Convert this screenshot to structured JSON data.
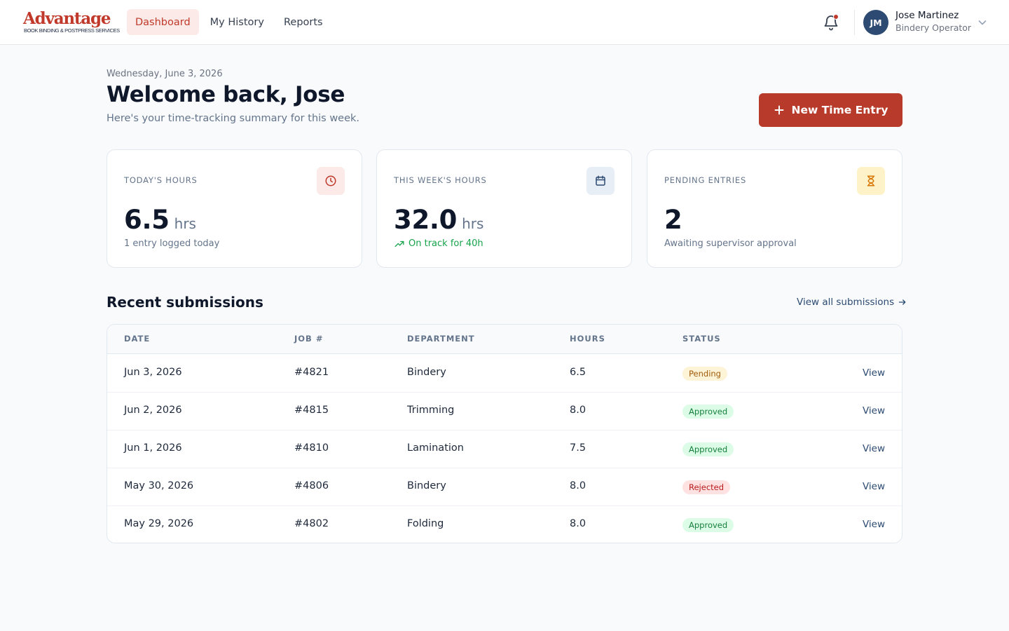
{
  "brand": {
    "name": "Advantage",
    "tagline": "BOOK BINDING & POSTPRESS SERVICES",
    "accent": "#c0392b"
  },
  "nav": [
    {
      "label": "Dashboard",
      "active": true
    },
    {
      "label": "My History",
      "active": false
    },
    {
      "label": "Reports",
      "active": false
    }
  ],
  "user": {
    "initials": "JM",
    "name": "Jose Martinez",
    "role": "Bindery Operator"
  },
  "header": {
    "date": "Wednesday, June 3, 2026",
    "title": "Welcome back, Jose",
    "subtitle": "Here's your time-tracking summary for this week.",
    "new_entry_label": "New Time Entry"
  },
  "stats": [
    {
      "label": "TODAY'S HOURS",
      "value": "6.5",
      "unit": "hrs",
      "note": "1 entry logged today",
      "icon": "clock-icon"
    },
    {
      "label": "THIS WEEK'S HOURS",
      "value": "32.0",
      "unit": "hrs",
      "note": "On track for 40h",
      "icon": "calendar-icon"
    },
    {
      "label": "PENDING ENTRIES",
      "value": "2",
      "unit": "",
      "note": "Awaiting supervisor approval",
      "icon": "hourglass-icon"
    }
  ],
  "recent": {
    "title": "Recent submissions",
    "view_all": "View all submissions",
    "columns": [
      "DATE",
      "JOB #",
      "DEPARTMENT",
      "HOURS",
      "STATUS"
    ],
    "rows": [
      {
        "date": "Jun 3, 2026",
        "job": "#4821",
        "department": "Bindery",
        "hours": "6.5",
        "status": "Pending",
        "action": "View"
      },
      {
        "date": "Jun 2, 2026",
        "job": "#4815",
        "department": "Trimming",
        "hours": "8.0",
        "status": "Approved",
        "action": "View"
      },
      {
        "date": "Jun 1, 2026",
        "job": "#4810",
        "department": "Lamination",
        "hours": "7.5",
        "status": "Approved",
        "action": "View"
      },
      {
        "date": "May 30, 2026",
        "job": "#4806",
        "department": "Bindery",
        "hours": "8.0",
        "status": "Rejected",
        "action": "View"
      },
      {
        "date": "May 29, 2026",
        "job": "#4802",
        "department": "Folding",
        "hours": "8.0",
        "status": "Approved",
        "action": "View"
      }
    ]
  }
}
